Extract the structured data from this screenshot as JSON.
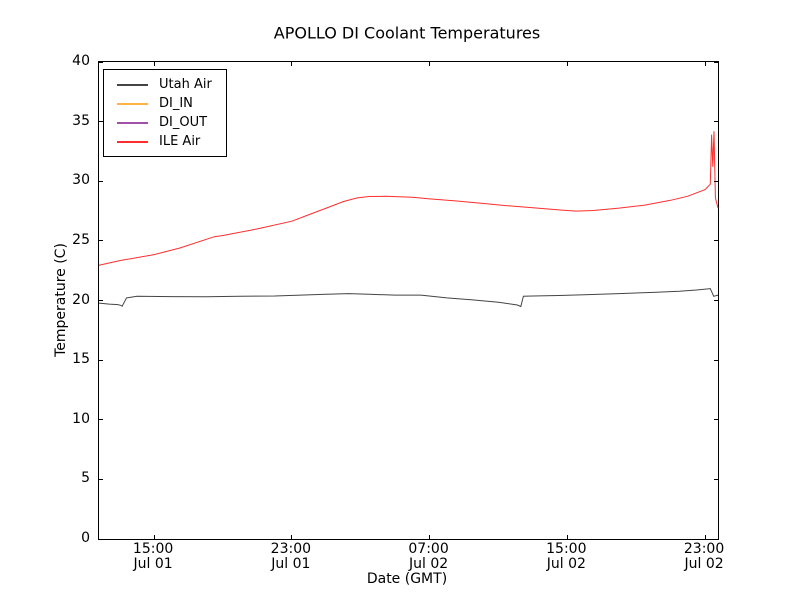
{
  "chart_data": {
    "type": "line",
    "title": "APOLLO DI Coolant Temperatures",
    "xlabel": "Date (GMT)",
    "ylabel": "Temperature (C)",
    "ylim": [
      0,
      40
    ],
    "yticks": [
      0,
      5,
      10,
      15,
      20,
      25,
      30,
      35,
      40
    ],
    "x_unit": "hours since Jul 01 00:00 GMT",
    "xlim_hours": [
      11.8,
      47.75
    ],
    "grid": false,
    "legend_position": "upper left",
    "xticks": [
      {
        "hours": 15,
        "time": "15:00",
        "date": "Jul 01"
      },
      {
        "hours": 23,
        "time": "23:00",
        "date": "Jul 01"
      },
      {
        "hours": 31,
        "time": "07:00",
        "date": "Jul 02"
      },
      {
        "hours": 39,
        "time": "15:00",
        "date": "Jul 02"
      },
      {
        "hours": 47,
        "time": "23:00",
        "date": "Jul 02"
      }
    ],
    "series": [
      {
        "name": "Utah Air",
        "color": "#444444",
        "x": [
          11.8,
          12.4,
          12.9,
          13.05,
          13.15,
          13.4,
          14,
          16,
          18,
          20,
          22,
          23.5,
          25,
          26.3,
          27.5,
          29,
          30.5,
          32,
          33.5,
          35,
          36.1,
          36.3,
          36.45,
          37,
          38.5,
          40,
          42,
          44,
          45.5,
          46.5,
          47.3,
          47.5,
          47.75
        ],
        "values": [
          19.78,
          19.7,
          19.66,
          19.6,
          19.52,
          20.22,
          20.35,
          20.33,
          20.32,
          20.35,
          20.38,
          20.45,
          20.52,
          20.58,
          20.52,
          20.45,
          20.45,
          20.22,
          20.05,
          19.85,
          19.62,
          19.5,
          20.35,
          20.38,
          20.42,
          20.48,
          20.58,
          20.68,
          20.78,
          20.88,
          21.0,
          20.35,
          20.45
        ]
      },
      {
        "name": "DI_IN",
        "color": "#ffb347",
        "x": [],
        "values": []
      },
      {
        "name": "DI_OUT",
        "color": "#a050a8",
        "x": [],
        "values": []
      },
      {
        "name": "ILE Air",
        "color": "#ff2d2d",
        "x": [
          11.8,
          13,
          15,
          16.5,
          18.5,
          19,
          21,
          23,
          24,
          25,
          26,
          26.8,
          27.5,
          28.5,
          29.2,
          30,
          31,
          32.5,
          34,
          35.5,
          37,
          38.5,
          39.5,
          40.5,
          42,
          43.5,
          45,
          46,
          47,
          47.3,
          47.38,
          47.45,
          47.52,
          47.6,
          47.75
        ],
        "values": [
          22.95,
          23.35,
          23.85,
          24.4,
          25.35,
          25.45,
          26.0,
          26.65,
          27.2,
          27.75,
          28.3,
          28.6,
          28.72,
          28.74,
          28.7,
          28.65,
          28.52,
          28.35,
          28.15,
          27.95,
          27.78,
          27.6,
          27.5,
          27.55,
          27.75,
          28.0,
          28.4,
          28.75,
          29.3,
          29.75,
          33.9,
          31.2,
          34.2,
          28.6,
          27.75
        ]
      }
    ],
    "axes_color": "#000000"
  }
}
